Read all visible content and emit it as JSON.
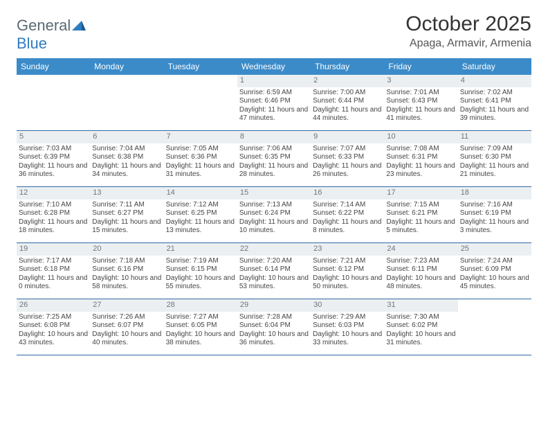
{
  "brand": {
    "part1": "General",
    "part2": "Blue"
  },
  "title": "October 2025",
  "location": "Apaga, Armavir, Armenia",
  "dayNames": [
    "Sunday",
    "Monday",
    "Tuesday",
    "Wednesday",
    "Thursday",
    "Friday",
    "Saturday"
  ],
  "colors": {
    "headerBg": "#3b8bc9",
    "weekBorder": "#2d6aa3",
    "dayNumBg": "#eceff1",
    "dayNumColor": "#6a7680",
    "textColor": "#444444",
    "logoGray": "#5a6a72",
    "logoBlue": "#2f7cc0"
  },
  "weeks": [
    [
      null,
      null,
      null,
      {
        "n": "1",
        "sr": "6:59 AM",
        "ss": "6:46 PM",
        "dl": "11 hours and 47 minutes."
      },
      {
        "n": "2",
        "sr": "7:00 AM",
        "ss": "6:44 PM",
        "dl": "11 hours and 44 minutes."
      },
      {
        "n": "3",
        "sr": "7:01 AM",
        "ss": "6:43 PM",
        "dl": "11 hours and 41 minutes."
      },
      {
        "n": "4",
        "sr": "7:02 AM",
        "ss": "6:41 PM",
        "dl": "11 hours and 39 minutes."
      }
    ],
    [
      {
        "n": "5",
        "sr": "7:03 AM",
        "ss": "6:39 PM",
        "dl": "11 hours and 36 minutes."
      },
      {
        "n": "6",
        "sr": "7:04 AM",
        "ss": "6:38 PM",
        "dl": "11 hours and 34 minutes."
      },
      {
        "n": "7",
        "sr": "7:05 AM",
        "ss": "6:36 PM",
        "dl": "11 hours and 31 minutes."
      },
      {
        "n": "8",
        "sr": "7:06 AM",
        "ss": "6:35 PM",
        "dl": "11 hours and 28 minutes."
      },
      {
        "n": "9",
        "sr": "7:07 AM",
        "ss": "6:33 PM",
        "dl": "11 hours and 26 minutes."
      },
      {
        "n": "10",
        "sr": "7:08 AM",
        "ss": "6:31 PM",
        "dl": "11 hours and 23 minutes."
      },
      {
        "n": "11",
        "sr": "7:09 AM",
        "ss": "6:30 PM",
        "dl": "11 hours and 21 minutes."
      }
    ],
    [
      {
        "n": "12",
        "sr": "7:10 AM",
        "ss": "6:28 PM",
        "dl": "11 hours and 18 minutes."
      },
      {
        "n": "13",
        "sr": "7:11 AM",
        "ss": "6:27 PM",
        "dl": "11 hours and 15 minutes."
      },
      {
        "n": "14",
        "sr": "7:12 AM",
        "ss": "6:25 PM",
        "dl": "11 hours and 13 minutes."
      },
      {
        "n": "15",
        "sr": "7:13 AM",
        "ss": "6:24 PM",
        "dl": "11 hours and 10 minutes."
      },
      {
        "n": "16",
        "sr": "7:14 AM",
        "ss": "6:22 PM",
        "dl": "11 hours and 8 minutes."
      },
      {
        "n": "17",
        "sr": "7:15 AM",
        "ss": "6:21 PM",
        "dl": "11 hours and 5 minutes."
      },
      {
        "n": "18",
        "sr": "7:16 AM",
        "ss": "6:19 PM",
        "dl": "11 hours and 3 minutes."
      }
    ],
    [
      {
        "n": "19",
        "sr": "7:17 AM",
        "ss": "6:18 PM",
        "dl": "11 hours and 0 minutes."
      },
      {
        "n": "20",
        "sr": "7:18 AM",
        "ss": "6:16 PM",
        "dl": "10 hours and 58 minutes."
      },
      {
        "n": "21",
        "sr": "7:19 AM",
        "ss": "6:15 PM",
        "dl": "10 hours and 55 minutes."
      },
      {
        "n": "22",
        "sr": "7:20 AM",
        "ss": "6:14 PM",
        "dl": "10 hours and 53 minutes."
      },
      {
        "n": "23",
        "sr": "7:21 AM",
        "ss": "6:12 PM",
        "dl": "10 hours and 50 minutes."
      },
      {
        "n": "24",
        "sr": "7:23 AM",
        "ss": "6:11 PM",
        "dl": "10 hours and 48 minutes."
      },
      {
        "n": "25",
        "sr": "7:24 AM",
        "ss": "6:09 PM",
        "dl": "10 hours and 45 minutes."
      }
    ],
    [
      {
        "n": "26",
        "sr": "7:25 AM",
        "ss": "6:08 PM",
        "dl": "10 hours and 43 minutes."
      },
      {
        "n": "27",
        "sr": "7:26 AM",
        "ss": "6:07 PM",
        "dl": "10 hours and 40 minutes."
      },
      {
        "n": "28",
        "sr": "7:27 AM",
        "ss": "6:05 PM",
        "dl": "10 hours and 38 minutes."
      },
      {
        "n": "29",
        "sr": "7:28 AM",
        "ss": "6:04 PM",
        "dl": "10 hours and 36 minutes."
      },
      {
        "n": "30",
        "sr": "7:29 AM",
        "ss": "6:03 PM",
        "dl": "10 hours and 33 minutes."
      },
      {
        "n": "31",
        "sr": "7:30 AM",
        "ss": "6:02 PM",
        "dl": "10 hours and 31 minutes."
      },
      null
    ]
  ],
  "labels": {
    "sunrise": "Sunrise:",
    "sunset": "Sunset:",
    "daylight": "Daylight:"
  }
}
